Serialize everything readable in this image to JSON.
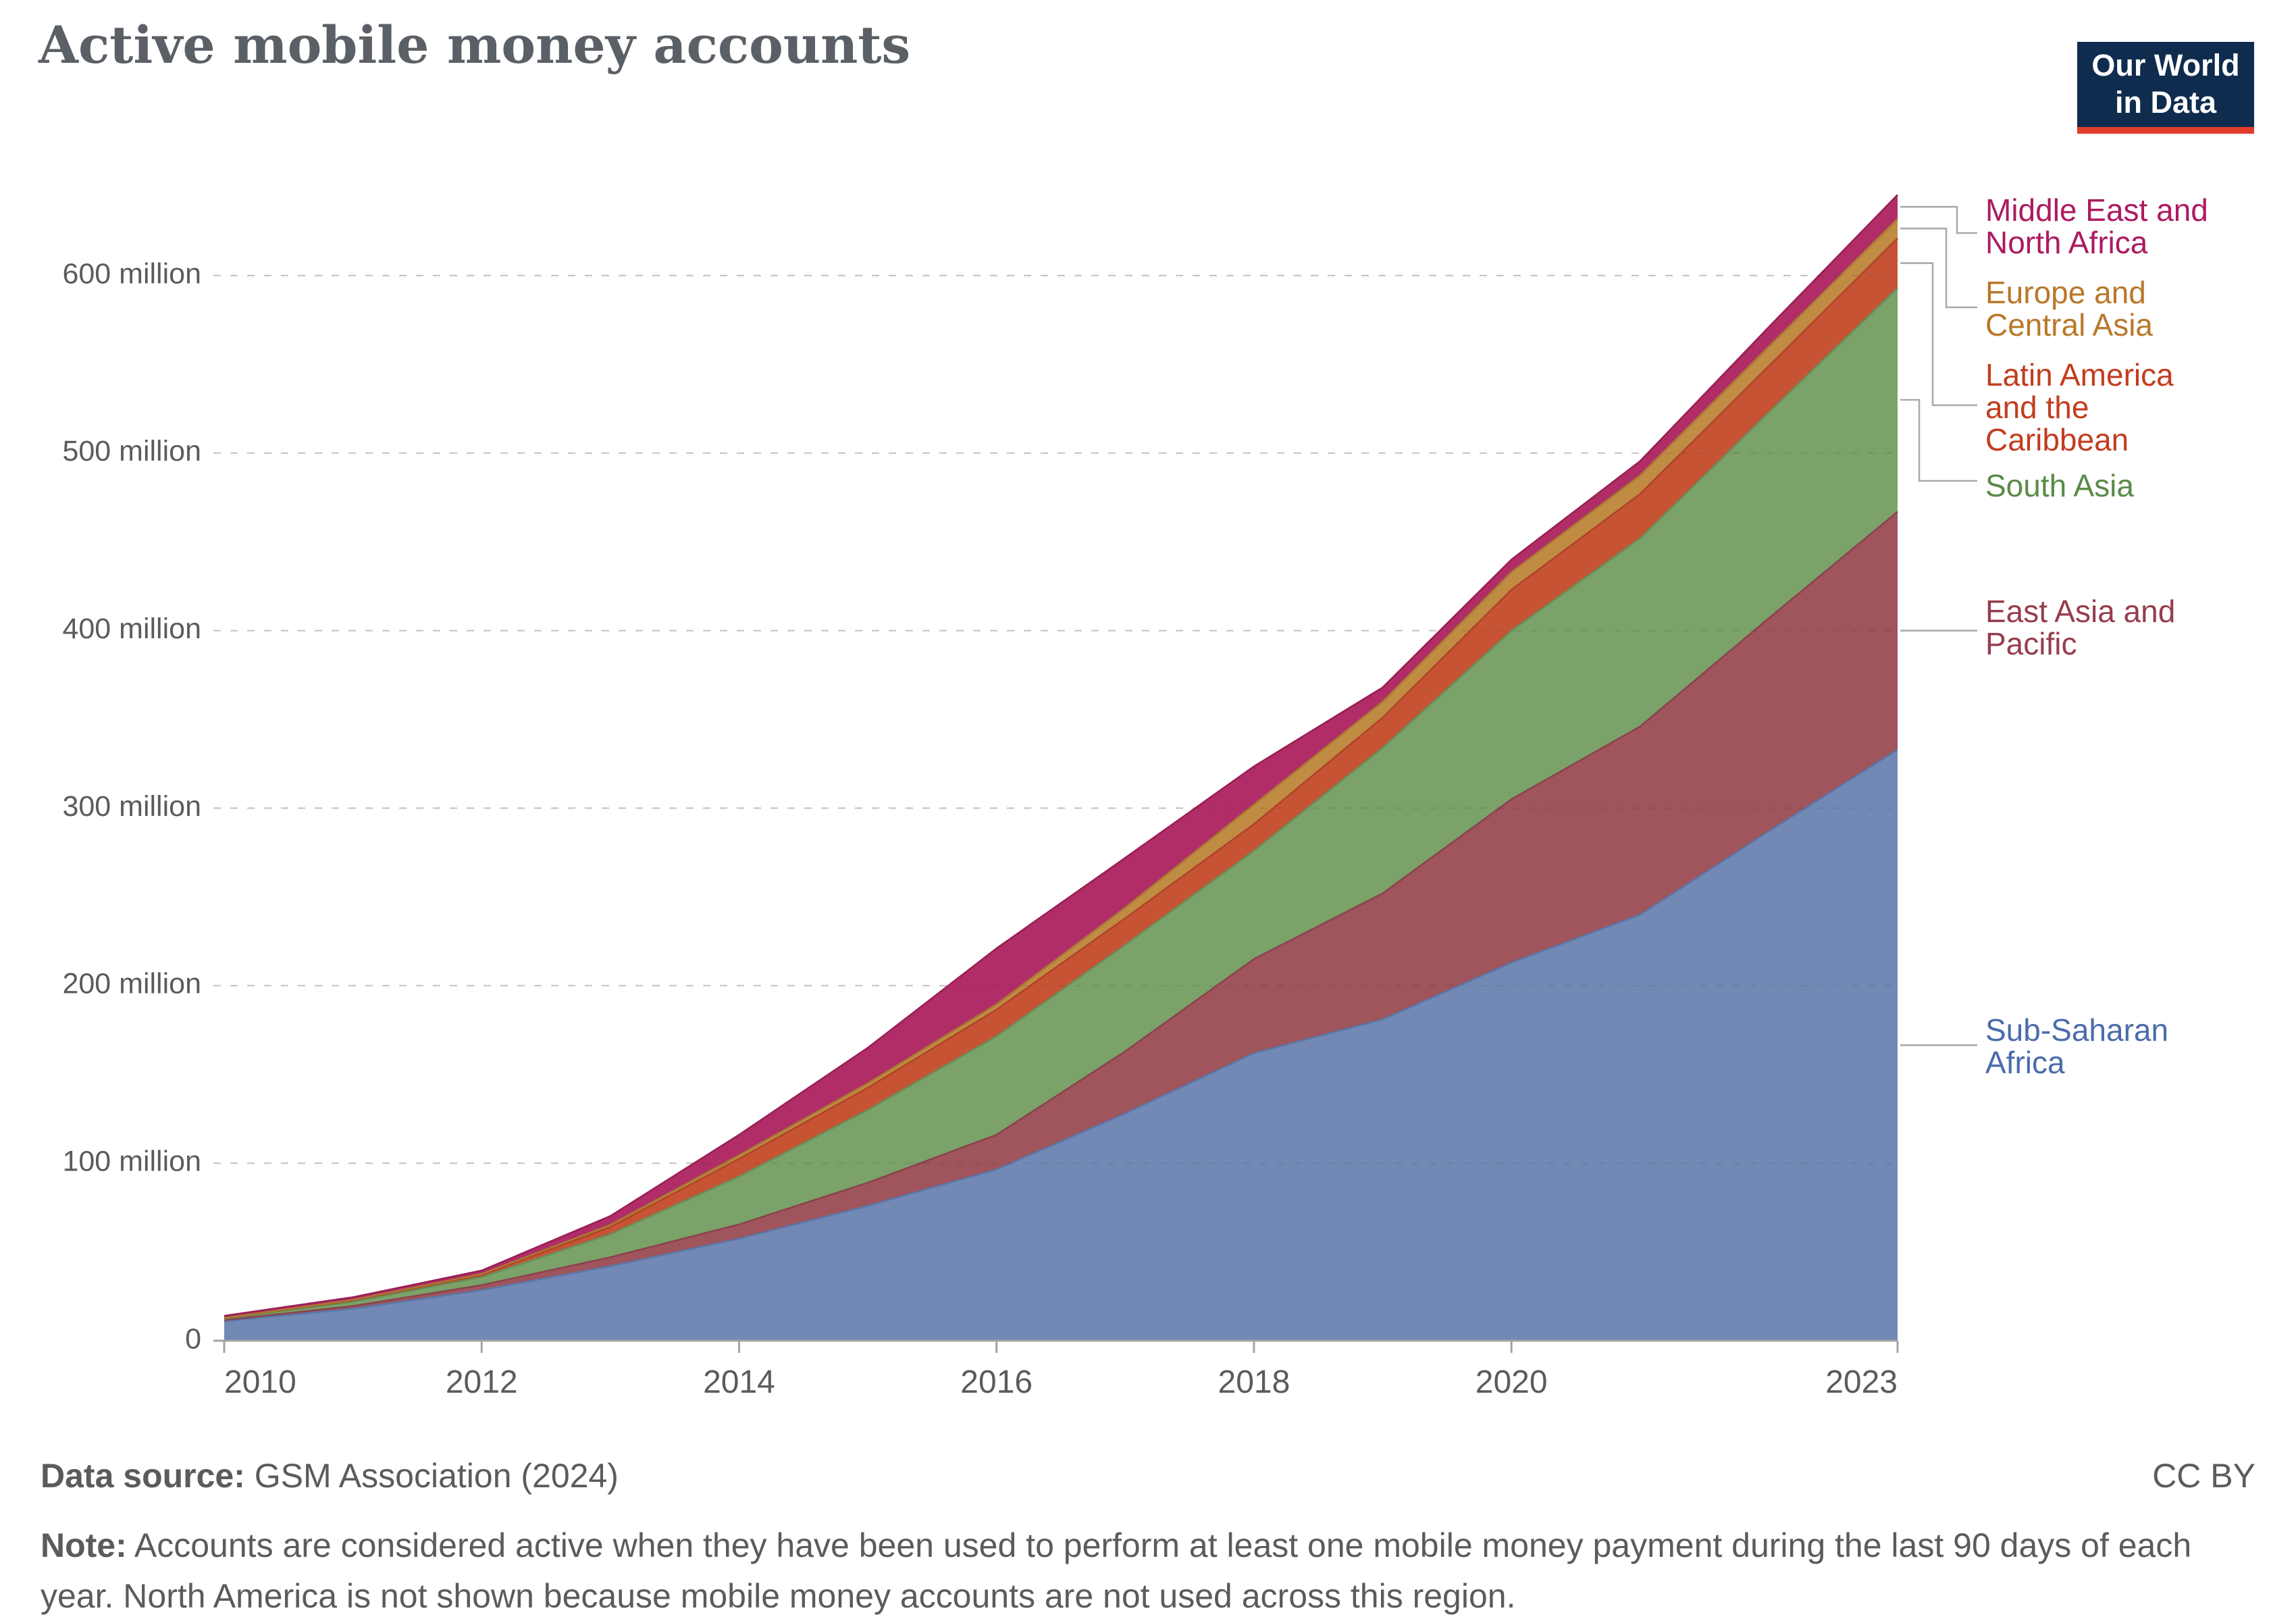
{
  "title": "Active mobile money accounts",
  "logo": {
    "line1": "Our World",
    "line2": "in Data"
  },
  "footer": {
    "source_label": "Data source:",
    "source_text": " GSM Association (2024)",
    "license": "CC BY",
    "note_label": "Note:",
    "note_text": " Accounts are considered active when they have been used to perform at least one mobile money payment during the last 90 days of each year. North America is not shown because mobile money accounts are not used across this region."
  },
  "axis": {
    "y_ticks": [
      {
        "value": 0,
        "label": "0"
      },
      {
        "value": 100,
        "label": "100 million"
      },
      {
        "value": 200,
        "label": "200 million"
      },
      {
        "value": 300,
        "label": "300 million"
      },
      {
        "value": 400,
        "label": "400 million"
      },
      {
        "value": 500,
        "label": "500 million"
      },
      {
        "value": 600,
        "label": "600 million"
      }
    ],
    "x_ticks": [
      2010,
      2012,
      2014,
      2016,
      2018,
      2020,
      2023
    ]
  },
  "chart_data": {
    "type": "area",
    "stacked": true,
    "title": "Active mobile money accounts",
    "unit": "million accounts",
    "x": [
      2010,
      2011,
      2012,
      2013,
      2014,
      2015,
      2016,
      2017,
      2018,
      2019,
      2020,
      2021,
      2022,
      2023
    ],
    "xlim": [
      2010,
      2023
    ],
    "ylim": [
      0,
      660
    ],
    "grid": true,
    "legend_position": "right",
    "series": [
      {
        "name": "Sub-Saharan Africa",
        "values": [
          11,
          18,
          28.5,
          42,
          57.5,
          76,
          96.5,
          128,
          162,
          181,
          213,
          240,
          287,
          333
        ],
        "fill": "#7289b5",
        "edge": "#5b76a6"
      },
      {
        "name": "East Asia and Pacific",
        "values": [
          0.6,
          1.5,
          2.8,
          5,
          8,
          13,
          19.5,
          35,
          53,
          71,
          92,
          106,
          120,
          134
        ],
        "fill": "#a0545b",
        "edge": "#8a434d"
      },
      {
        "name": "South Asia",
        "values": [
          0.8,
          2.5,
          4.5,
          13,
          27,
          41,
          55.5,
          60,
          61,
          82,
          95,
          106,
          116,
          126
        ],
        "fill": "#7aa269",
        "edge": "#678f58"
      },
      {
        "name": "Latin America and the Caribbean",
        "values": [
          0.3,
          0.7,
          1.2,
          4,
          10,
          12.5,
          15,
          15,
          15,
          17,
          23,
          25,
          26,
          28
        ],
        "fill": "#c65434",
        "edge": "#b04426"
      },
      {
        "name": "Europe and Central Asia",
        "values": [
          0.1,
          0.3,
          0.6,
          1.2,
          2,
          2.5,
          3,
          6,
          11,
          9,
          10,
          10.5,
          11,
          11
        ],
        "fill": "#c08b43",
        "edge": "#aa7732"
      },
      {
        "name": "Middle East and North Africa",
        "values": [
          1.2,
          1.5,
          1.9,
          5,
          11.5,
          20,
          31.5,
          28,
          21.5,
          8,
          7,
          8,
          11,
          13.5
        ],
        "fill": "#b02d68",
        "edge": "#9a1f55"
      }
    ]
  },
  "legend": [
    {
      "series": "Middle East and North Africa",
      "lines": [
        "Middle East and",
        "North Africa"
      ],
      "color": "#ad1a61"
    },
    {
      "series": "Europe and Central Asia",
      "lines": [
        "Europe and",
        "Central Asia"
      ],
      "color": "#b9782a"
    },
    {
      "series": "Latin America and the Caribbean",
      "lines": [
        "Latin America",
        "and the",
        "Caribbean"
      ],
      "color": "#c23d1e"
    },
    {
      "series": "South Asia",
      "lines": [
        "South Asia"
      ],
      "color": "#5a8a48"
    },
    {
      "series": "East Asia and Pacific",
      "lines": [
        "East Asia and",
        "Pacific"
      ],
      "color": "#963d4c"
    },
    {
      "series": "Sub-Saharan Africa",
      "lines": [
        "Sub-Saharan",
        "Africa"
      ],
      "color": "#4b6cab"
    }
  ],
  "colors": {
    "grid": "#d9d9d9",
    "axis": "#a3a3a3",
    "tick_label": "#5b5b5b",
    "connector": "#aaaaaa",
    "logo_bg": "#0f2c4e",
    "logo_bar": "#e23b2c"
  }
}
